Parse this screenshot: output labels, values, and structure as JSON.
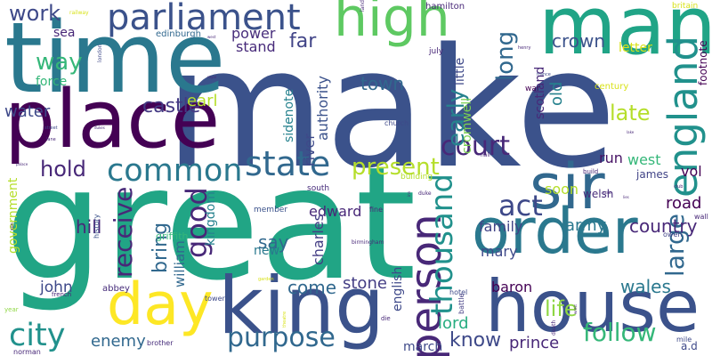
{
  "cloud": {
    "background": "#ffffff",
    "words": [
      {
        "text": "make",
        "color": "#3b528b"
      },
      {
        "text": "great",
        "color": "#21a585"
      },
      {
        "text": "time",
        "color": "#2a788e"
      },
      {
        "text": "man",
        "color": "#20a486"
      },
      {
        "text": "place",
        "color": "#440154"
      },
      {
        "text": "house",
        "color": "#3b528b"
      },
      {
        "text": "king",
        "color": "#3b528b"
      },
      {
        "text": "order",
        "color": "#2a788e"
      },
      {
        "text": "sir",
        "color": "#31688e"
      },
      {
        "text": "day",
        "color": "#fde725"
      },
      {
        "text": "high",
        "color": "#5ec962"
      },
      {
        "text": "parliament",
        "color": "#3b528b"
      },
      {
        "text": "england",
        "color": "#21918c"
      },
      {
        "text": "person",
        "color": "#482878"
      },
      {
        "text": "court",
        "color": "#482878"
      },
      {
        "text": "common",
        "color": "#2a788e"
      },
      {
        "text": "state",
        "color": "#31688e"
      },
      {
        "text": "city",
        "color": "#21918c"
      },
      {
        "text": "act",
        "color": "#3e4989"
      },
      {
        "text": "thousand",
        "color": "#21918c"
      },
      {
        "text": "present",
        "color": "#b5de2b"
      },
      {
        "text": "good",
        "color": "#482878"
      },
      {
        "text": "receive",
        "color": "#482878"
      },
      {
        "text": "large",
        "color": "#31688e"
      },
      {
        "text": "purpose",
        "color": "#31688e"
      },
      {
        "text": "follow",
        "color": "#35b779"
      },
      {
        "text": "life",
        "color": "#8fd744"
      },
      {
        "text": "know",
        "color": "#3e4989"
      },
      {
        "text": "work",
        "color": "#3e4989"
      },
      {
        "text": "way",
        "color": "#35b779"
      },
      {
        "text": "castle",
        "color": "#443983"
      },
      {
        "text": "early",
        "color": "#26828e"
      },
      {
        "text": "long",
        "color": "#31688e"
      },
      {
        "text": "late",
        "color": "#b5de2b"
      },
      {
        "text": "crown",
        "color": "#3b528b"
      },
      {
        "text": "hold",
        "color": "#482878"
      },
      {
        "text": "town",
        "color": "#31688e"
      },
      {
        "text": "far",
        "color": "#414487"
      },
      {
        "text": "come",
        "color": "#31688e"
      },
      {
        "text": "stone",
        "color": "#433d84"
      },
      {
        "text": "wales",
        "color": "#2a788e"
      },
      {
        "text": "country",
        "color": "#482878"
      },
      {
        "text": "army",
        "color": "#2a788e"
      },
      {
        "text": "road",
        "color": "#440154"
      },
      {
        "text": "bring",
        "color": "#31688e"
      },
      {
        "text": "say",
        "color": "#31688e"
      },
      {
        "text": "hill",
        "color": "#482878"
      },
      {
        "text": "lord",
        "color": "#27ad81"
      },
      {
        "text": "prince",
        "color": "#482878"
      },
      {
        "text": "earl",
        "color": "#b5de2b"
      },
      {
        "text": "water",
        "color": "#3e4989"
      },
      {
        "text": "power",
        "color": "#472d7b"
      },
      {
        "text": "stand",
        "color": "#472a7a"
      },
      {
        "text": "authority",
        "color": "#3b528b"
      },
      {
        "text": "river",
        "color": "#3e4989"
      },
      {
        "text": "john",
        "color": "#3e4989"
      },
      {
        "text": "enemy",
        "color": "#31688e"
      },
      {
        "text": "baron",
        "color": "#440154"
      },
      {
        "text": "mary",
        "color": "#3e4989"
      },
      {
        "text": "family",
        "color": "#414487"
      },
      {
        "text": "soon",
        "color": "#b5de2b"
      },
      {
        "text": "run",
        "color": "#471365"
      },
      {
        "text": "west",
        "color": "#35b779"
      },
      {
        "text": "vol",
        "color": "#440154"
      },
      {
        "text": "edward",
        "color": "#482878"
      },
      {
        "text": "charles",
        "color": "#433d84"
      },
      {
        "text": "william",
        "color": "#31688e"
      },
      {
        "text": "kingdom",
        "color": "#26828e"
      },
      {
        "text": "old",
        "color": "#26828e"
      },
      {
        "text": "scotland",
        "color": "#482878"
      },
      {
        "text": "cromwell",
        "color": "#7ad151"
      },
      {
        "text": "little",
        "color": "#3e4989"
      },
      {
        "text": "letter",
        "color": "#d8e219"
      },
      {
        "text": "sea",
        "color": "#482878"
      },
      {
        "text": "force",
        "color": "#35b779"
      },
      {
        "text": "new",
        "color": "#2a788e"
      },
      {
        "text": "english",
        "color": "#3e4989"
      },
      {
        "text": "march",
        "color": "#3e4989"
      },
      {
        "text": "government",
        "color": "#b5de2b"
      },
      {
        "text": "sidenote",
        "color": "#26828e"
      },
      {
        "text": "james",
        "color": "#414487"
      },
      {
        "text": "welsh",
        "color": "#472d7b"
      },
      {
        "text": "footnote",
        "color": "#440154"
      },
      {
        "text": "century",
        "color": "#d8e219"
      },
      {
        "text": "a.d",
        "color": "#3e4989"
      },
      {
        "text": "griffith",
        "color": "#35b779"
      },
      {
        "text": "abbey",
        "color": "#472d7b"
      },
      {
        "text": "member",
        "color": "#3b528b"
      },
      {
        "text": "south",
        "color": "#472d7b"
      },
      {
        "text": "edinburgh",
        "color": "#31688e"
      },
      {
        "text": "hamilton",
        "color": "#482878"
      },
      {
        "text": "july",
        "color": "#482878"
      },
      {
        "text": "war",
        "color": "#440154"
      },
      {
        "text": "building",
        "color": "#b5de2b"
      },
      {
        "text": "church",
        "color": "#3e4989"
      },
      {
        "text": "history",
        "color": "#3b528b"
      },
      {
        "text": "brother",
        "color": "#472d7b"
      },
      {
        "text": "norman",
        "color": "#482878"
      },
      {
        "text": "french",
        "color": "#482878"
      },
      {
        "text": "tower",
        "color": "#3e4989"
      },
      {
        "text": "mile",
        "color": "#3e4989"
      },
      {
        "text": "hotel",
        "color": "#3e4989"
      },
      {
        "text": "owen",
        "color": "#414487"
      },
      {
        "text": "fine",
        "color": "#482878"
      },
      {
        "text": "wall",
        "color": "#482878"
      },
      {
        "text": "britain",
        "color": "#d8e219"
      },
      {
        "text": "build",
        "color": "#482878"
      },
      {
        "text": "birmingham",
        "color": "#482878"
      },
      {
        "text": "battle",
        "color": "#433d84"
      },
      {
        "text": "death",
        "color": "#482878"
      },
      {
        "text": "year",
        "color": "#8fd744"
      },
      {
        "text": "die",
        "color": "#482878"
      },
      {
        "text": "duke",
        "color": "#482878"
      },
      {
        "text": "london",
        "color": "#3e4989"
      },
      {
        "text": "hall",
        "color": "#482878"
      },
      {
        "text": "railway",
        "color": "#d8e219"
      },
      {
        "text": "land",
        "color": "#482878"
      },
      {
        "text": "henry",
        "color": "#482878"
      },
      {
        "text": "france",
        "color": "#3e4989"
      },
      {
        "text": "street",
        "color": "#3e4989"
      },
      {
        "text": "lane",
        "color": "#482878"
      },
      {
        "text": "son",
        "color": "#482878"
      },
      {
        "text": "club",
        "color": "#482878"
      },
      {
        "text": "use",
        "color": "#482878"
      },
      {
        "text": "garden",
        "color": "#d8e219"
      },
      {
        "text": "theatre",
        "color": "#d8e219"
      },
      {
        "text": "royal",
        "color": "#482878"
      },
      {
        "text": "dukes",
        "color": "#482878"
      },
      {
        "text": "wrest",
        "color": "#482878"
      },
      {
        "text": "palace",
        "color": "#482878"
      },
      {
        "text": "west",
        "color": "#482878"
      },
      {
        "text": "lake",
        "color": "#482878"
      },
      {
        "text": "inn",
        "color": "#482878"
      },
      {
        "text": "lies",
        "color": "#482878"
      }
    ]
  }
}
